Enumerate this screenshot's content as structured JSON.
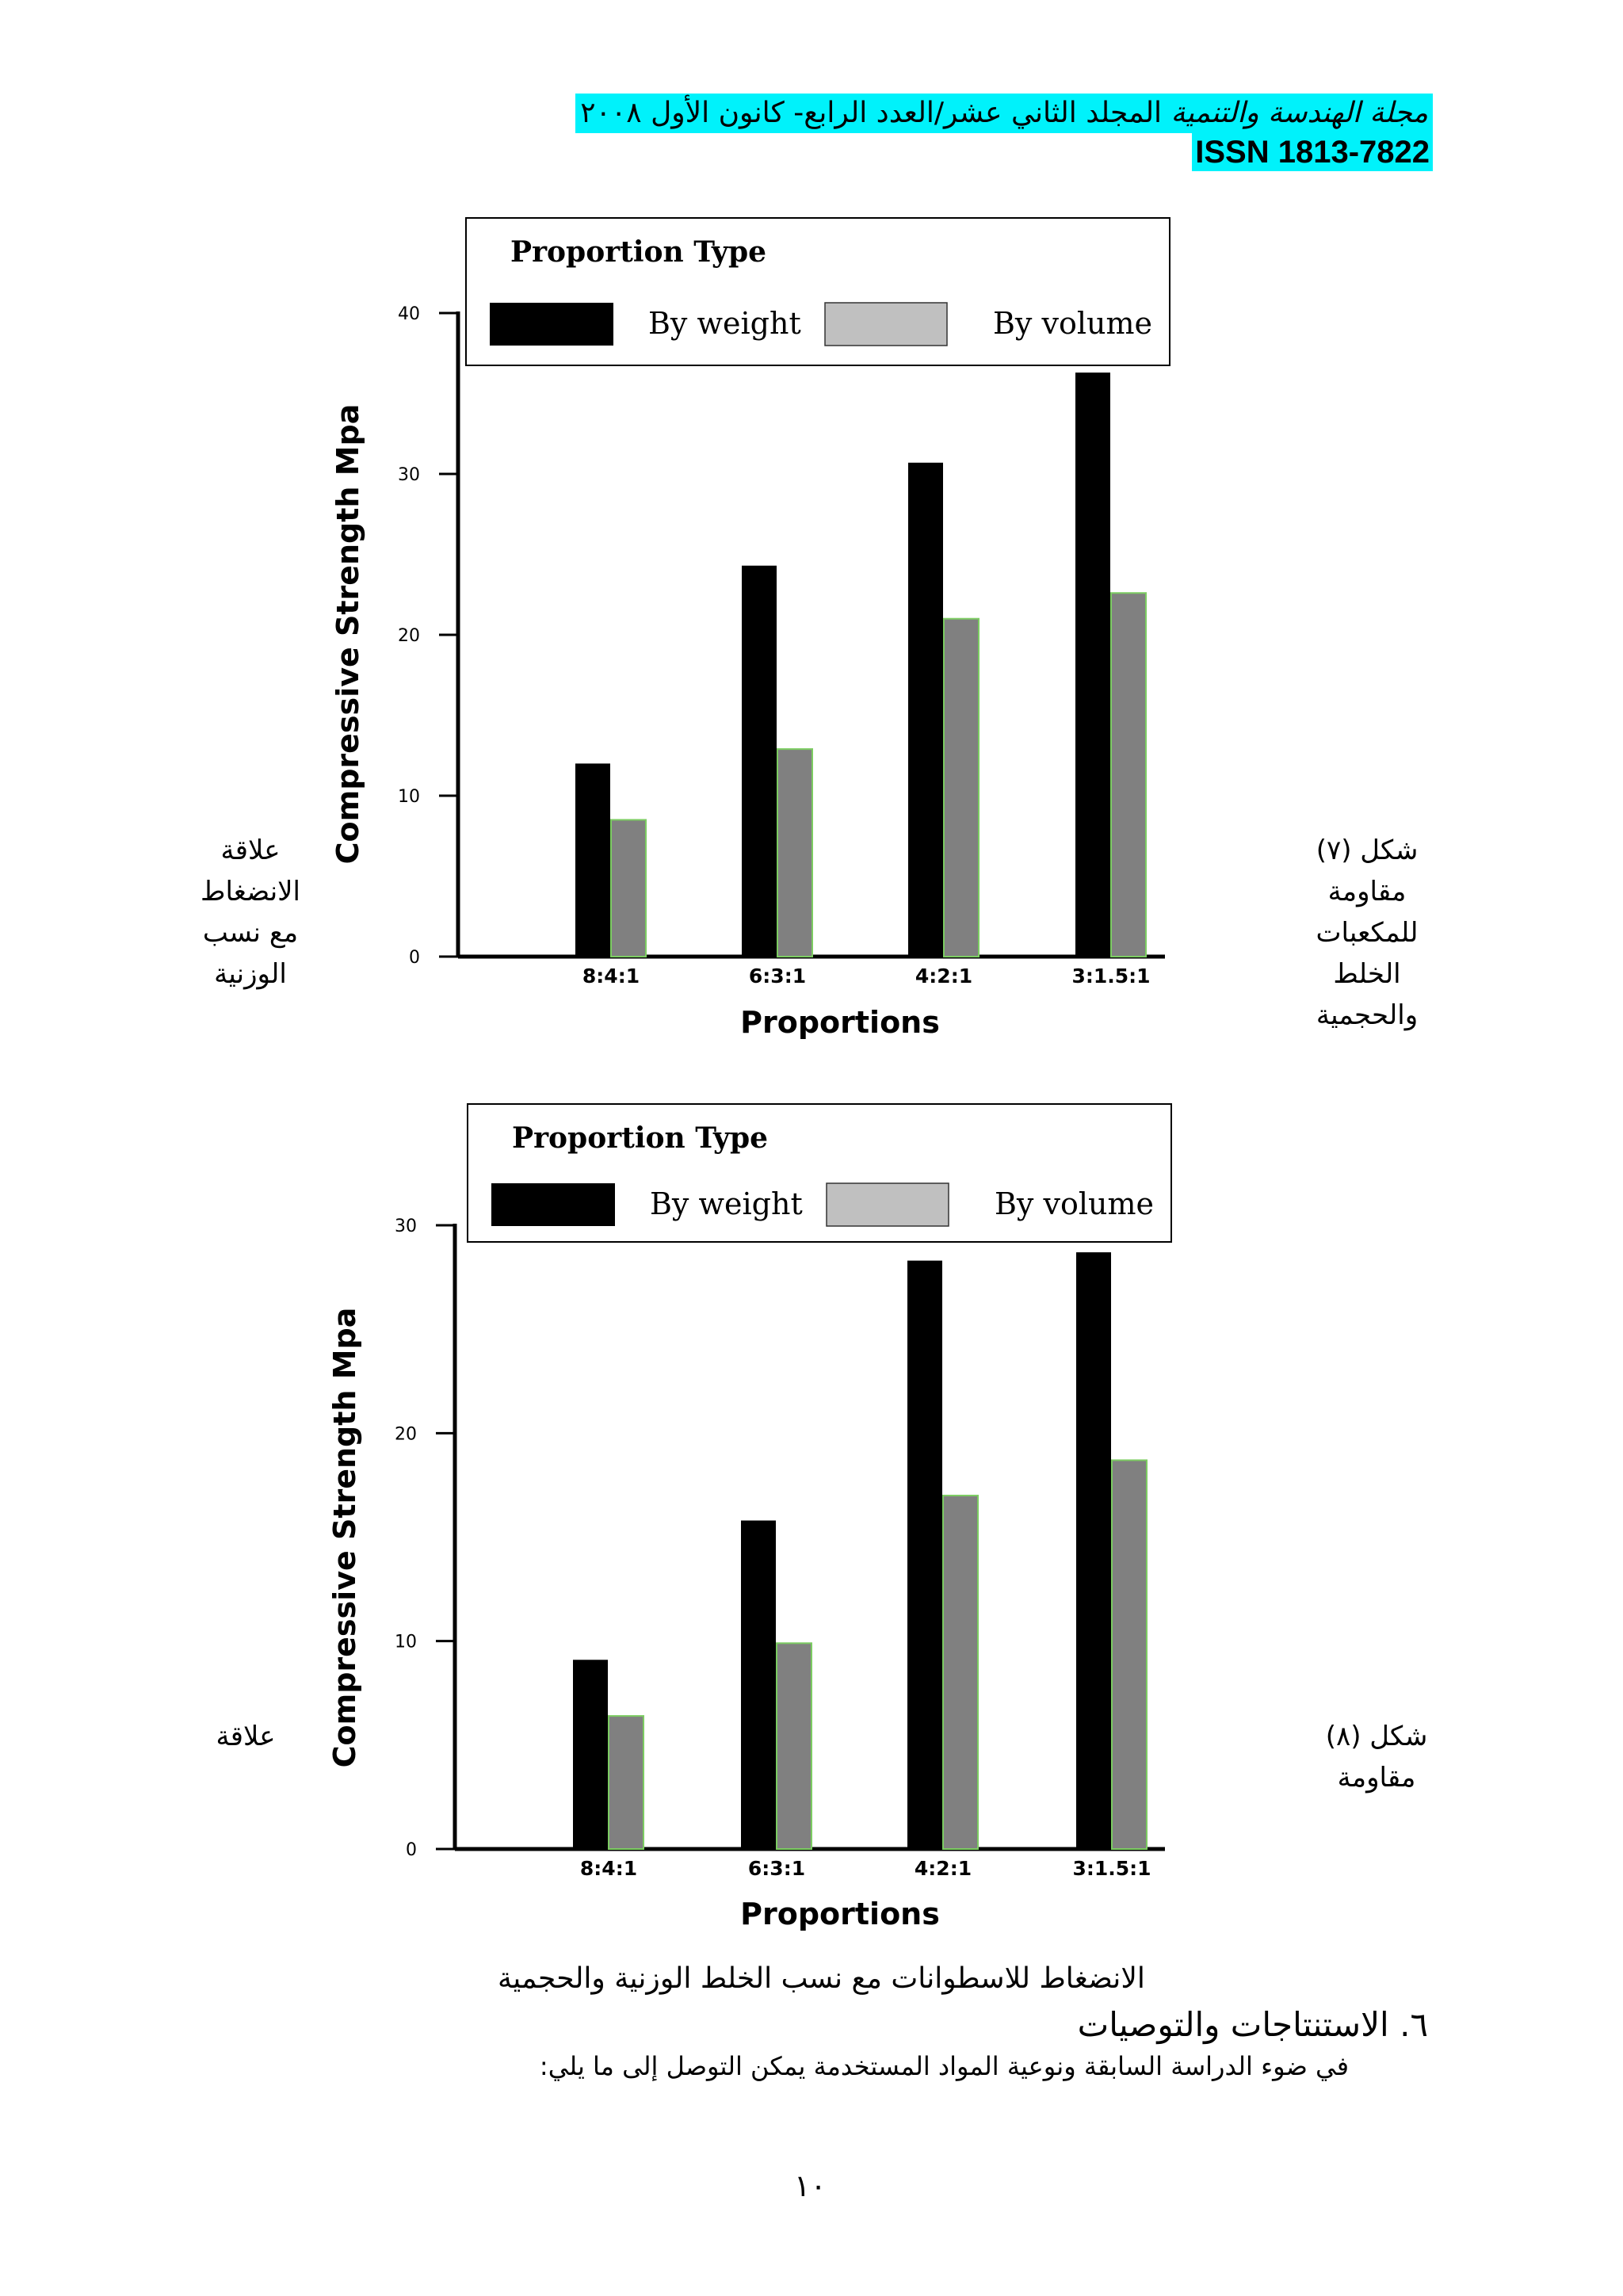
{
  "header": {
    "journal_title": "مجلة الهندسة والتنمية",
    "issue_text": "المجلد الثاني عشر/العدد الرابع- كانون الأول ٢٠٠٨",
    "issn": "ISSN 1813-7822"
  },
  "figure7": {
    "label_right": "شكل (٧) مقاومة للمكعبات الخلط والحجمية",
    "label_left": "علاقة الانضغاط مع نسب الوزنية"
  },
  "figure8": {
    "label_right": "شكل (٨) مقاومة",
    "label_left": "علاقة"
  },
  "caption8": "الانضغاط للاسطوانات مع نسب الخلط الوزنية والحجمية",
  "section": {
    "heading": "٦. الاستنتاجات والتوصيات",
    "intro": "في ضوء الدراسة السابقة ونوعية المواد المستخدمة يمكن التوصل إلى ما يلي:"
  },
  "page_number": "١٠",
  "colors": {
    "highlight": "#00f2fb",
    "by_weight": "#000000",
    "by_volume": "#808080",
    "legend_volume": "#c0c0c0"
  },
  "chart_data": [
    {
      "type": "bar",
      "title": "",
      "legend_title": "Proportion Type",
      "xlabel": "Proportions",
      "ylabel": "Compressive Strength Mpa",
      "categories": [
        "8:4:1",
        "6:3:1",
        "4:2:1",
        "3:1.5:1"
      ],
      "series": [
        {
          "name": "By weight",
          "values": [
            12,
            24.3,
            30.7,
            36.3
          ]
        },
        {
          "name": "By volume",
          "values": [
            8.5,
            12.9,
            21,
            22.6
          ]
        }
      ],
      "ylim": [
        0,
        40
      ],
      "yticks": [
        0,
        10,
        20,
        30,
        40
      ],
      "grid": false,
      "legend_position": "top"
    },
    {
      "type": "bar",
      "title": "",
      "legend_title": "Proportion Type",
      "xlabel": "Proportions",
      "ylabel": "Compressive Strength Mpa",
      "categories": [
        "8:4:1",
        "6:3:1",
        "4:2:1",
        "3:1.5:1"
      ],
      "series": [
        {
          "name": "By weight",
          "values": [
            9.1,
            15.8,
            28.3,
            28.7
          ]
        },
        {
          "name": "By volume",
          "values": [
            6.4,
            9.9,
            17,
            18.7
          ]
        }
      ],
      "ylim": [
        0,
        30
      ],
      "yticks": [
        0,
        10,
        20,
        30
      ],
      "grid": false,
      "legend_position": "top"
    }
  ]
}
